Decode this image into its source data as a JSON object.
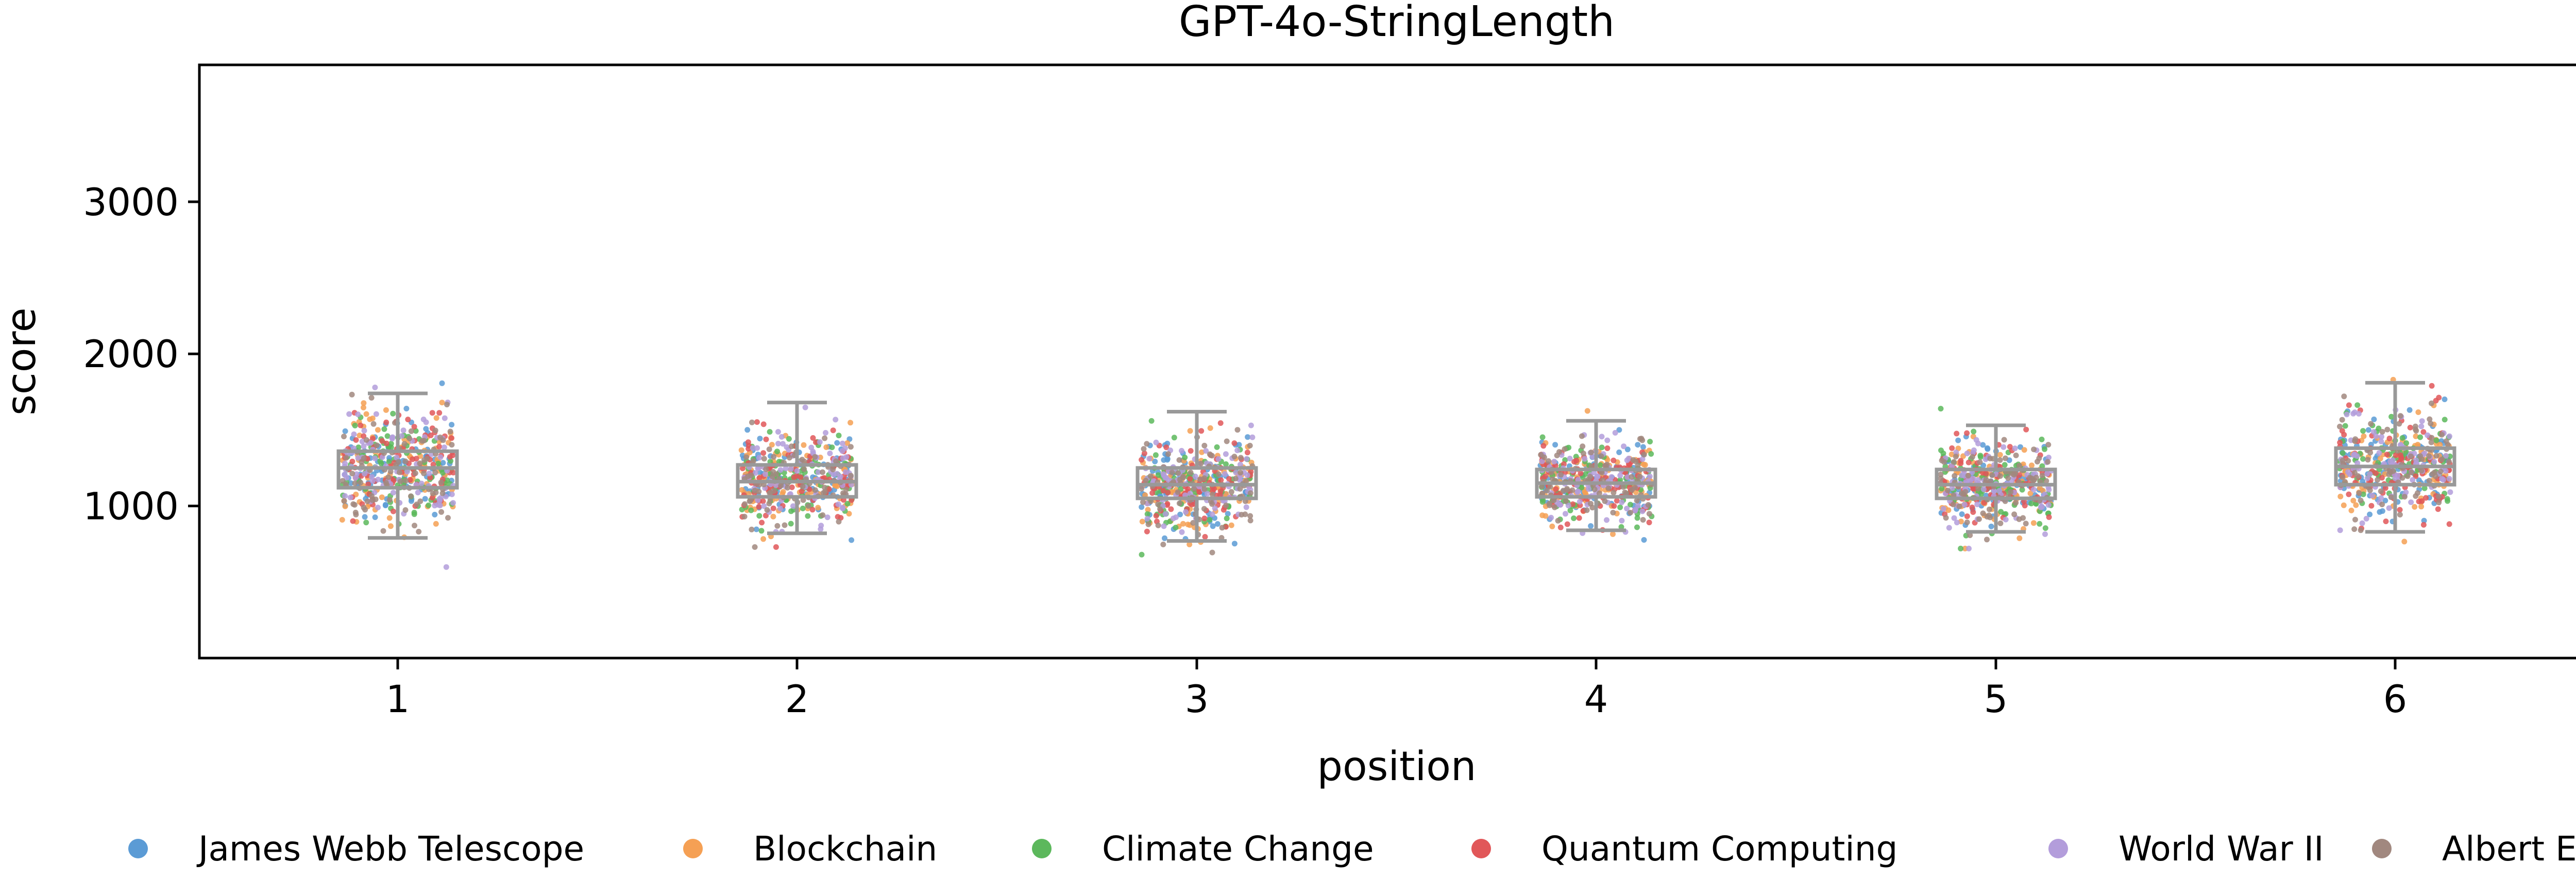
{
  "chart_data": {
    "type": "scatter",
    "subtype": "strip-with-boxplot",
    "title": "GPT-4o-StringLength",
    "xlabel": "position",
    "ylabel": "score",
    "categories": [
      "1",
      "2",
      "3",
      "4",
      "5",
      "6"
    ],
    "y_ticks": [
      1000,
      2000,
      3000
    ],
    "ylim": [
      0,
      3900
    ],
    "grid": false,
    "legend_position": "bottom",
    "box_color": "#999999",
    "boxes": [
      {
        "category": "1",
        "whisker_low": 790,
        "q1": 1120,
        "median": 1250,
        "q3": 1360,
        "whisker_high": 1740,
        "point_min": 570,
        "point_max": 1820
      },
      {
        "category": "2",
        "whisker_low": 820,
        "q1": 1060,
        "median": 1160,
        "q3": 1270,
        "whisker_high": 1680,
        "point_min": 730,
        "point_max": 1720
      },
      {
        "category": "3",
        "whisker_low": 770,
        "q1": 1050,
        "median": 1140,
        "q3": 1250,
        "whisker_high": 1620,
        "point_min": 680,
        "point_max": 1700
      },
      {
        "category": "4",
        "whisker_low": 840,
        "q1": 1060,
        "median": 1150,
        "q3": 1240,
        "whisker_high": 1560,
        "point_min": 720,
        "point_max": 1660
      },
      {
        "category": "5",
        "whisker_low": 830,
        "q1": 1050,
        "median": 1140,
        "q3": 1240,
        "whisker_high": 1530,
        "point_min": 720,
        "point_max": 1640
      },
      {
        "category": "6",
        "whisker_low": 830,
        "q1": 1140,
        "median": 1260,
        "q3": 1380,
        "whisker_high": 1810,
        "point_min": 750,
        "point_max": 1830
      }
    ],
    "series": [
      {
        "name": "James Webb Telescope",
        "color": "#5b9bd5"
      },
      {
        "name": "Blockchain",
        "color": "#f5a054"
      },
      {
        "name": "Climate Change",
        "color": "#5cb85c"
      },
      {
        "name": "Quantum Computing",
        "color": "#e15759"
      },
      {
        "name": "World War II",
        "color": "#b39ddb"
      },
      {
        "name": "Albert Einstein",
        "color": "#a1887f"
      }
    ]
  }
}
